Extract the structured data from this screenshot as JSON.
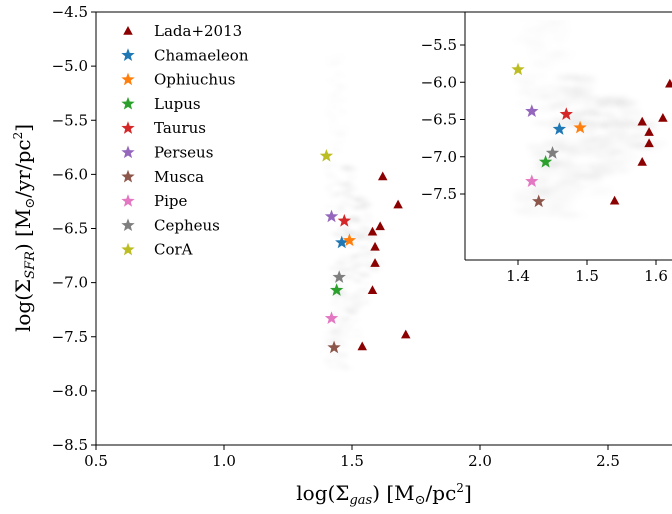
{
  "chart_data": [
    {
      "type": "scatter",
      "title": "",
      "xlabel_main": "log(Σ",
      "xlabel_sub": "gas",
      "xlabel_rest": ") [M",
      "xlabel_sun": "⊙",
      "xlabel_unit": "/pc",
      "xlabel_sup": "2",
      "xlabel_close": "]",
      "ylabel_main": "log(Σ",
      "ylabel_sub": "SFR",
      "ylabel_rest": ") [M",
      "ylabel_sun": "⊙",
      "ylabel_unit": "/yr/pc",
      "ylabel_sup": "2",
      "ylabel_close": "]",
      "xlim": [
        0.5,
        2.8
      ],
      "ylim": [
        -8.5,
        -4.5
      ],
      "xticks": [
        0.5,
        1.0,
        1.5,
        2.0,
        2.5
      ],
      "xtick_labels": [
        "0.5",
        "1.0",
        "1.5",
        "2.0",
        "2.5"
      ],
      "yticks": [
        -8.5,
        -8.0,
        -7.5,
        -7.0,
        -6.5,
        -6.0,
        -5.5,
        -5.0,
        -4.5
      ],
      "ytick_labels": [
        "−8.5",
        "−8.0",
        "−7.5",
        "−7.0",
        "−6.5",
        "−6.0",
        "−5.5",
        "−5.0",
        "−4.5"
      ],
      "grid": false,
      "legend_position": "top-left",
      "series": [
        {
          "name": "Lada+2013",
          "marker": "triangle",
          "color": "#8b0000",
          "points": [
            [
              1.62,
              -6.02
            ],
            [
              1.68,
              -6.28
            ],
            [
              1.61,
              -6.48
            ],
            [
              1.58,
              -6.53
            ],
            [
              1.59,
              -6.67
            ],
            [
              1.59,
              -6.82
            ],
            [
              1.58,
              -7.07
            ],
            [
              1.71,
              -7.48
            ],
            [
              1.54,
              -7.59
            ]
          ]
        },
        {
          "name": "Chamaeleon",
          "marker": "star",
          "color": "#1f77b4",
          "points": [
            [
              1.46,
              -6.63
            ]
          ]
        },
        {
          "name": "Ophiuchus",
          "marker": "star",
          "color": "#ff7f0e",
          "points": [
            [
              1.49,
              -6.61
            ]
          ]
        },
        {
          "name": "Lupus",
          "marker": "star",
          "color": "#2ca02c",
          "points": [
            [
              1.44,
              -7.07
            ]
          ]
        },
        {
          "name": "Taurus",
          "marker": "star",
          "color": "#d62728",
          "points": [
            [
              1.47,
              -6.43
            ]
          ]
        },
        {
          "name": "Perseus",
          "marker": "star",
          "color": "#9467bd",
          "points": [
            [
              1.42,
              -6.39
            ]
          ]
        },
        {
          "name": "Musca",
          "marker": "star",
          "color": "#8c564b",
          "points": [
            [
              1.43,
              -7.6
            ]
          ]
        },
        {
          "name": "Pipe",
          "marker": "star",
          "color": "#e377c2",
          "points": [
            [
              1.42,
              -7.33
            ]
          ]
        },
        {
          "name": "Cepheus",
          "marker": "star",
          "color": "#7f7f7f",
          "points": [
            [
              1.45,
              -6.95
            ]
          ]
        },
        {
          "name": "CorA",
          "marker": "star",
          "color": "#bcbd22",
          "points": [
            [
              1.4,
              -5.83
            ]
          ]
        }
      ]
    },
    {
      "type": "scatter",
      "title": "inset",
      "xlim": [
        1.33,
        1.62
      ],
      "ylim": [
        -7.85,
        -5.25
      ],
      "xticks": [
        1.4,
        1.5,
        1.6
      ],
      "xtick_labels": [
        "1.4",
        "1.5",
        "1.6"
      ],
      "yticks": [
        -7.5,
        -7.0,
        -6.5,
        -6.0,
        -5.5
      ],
      "ytick_labels": [
        "−7.5",
        "−7.0",
        "−6.5",
        "−6.0",
        "−5.5"
      ],
      "grid": false
    }
  ]
}
